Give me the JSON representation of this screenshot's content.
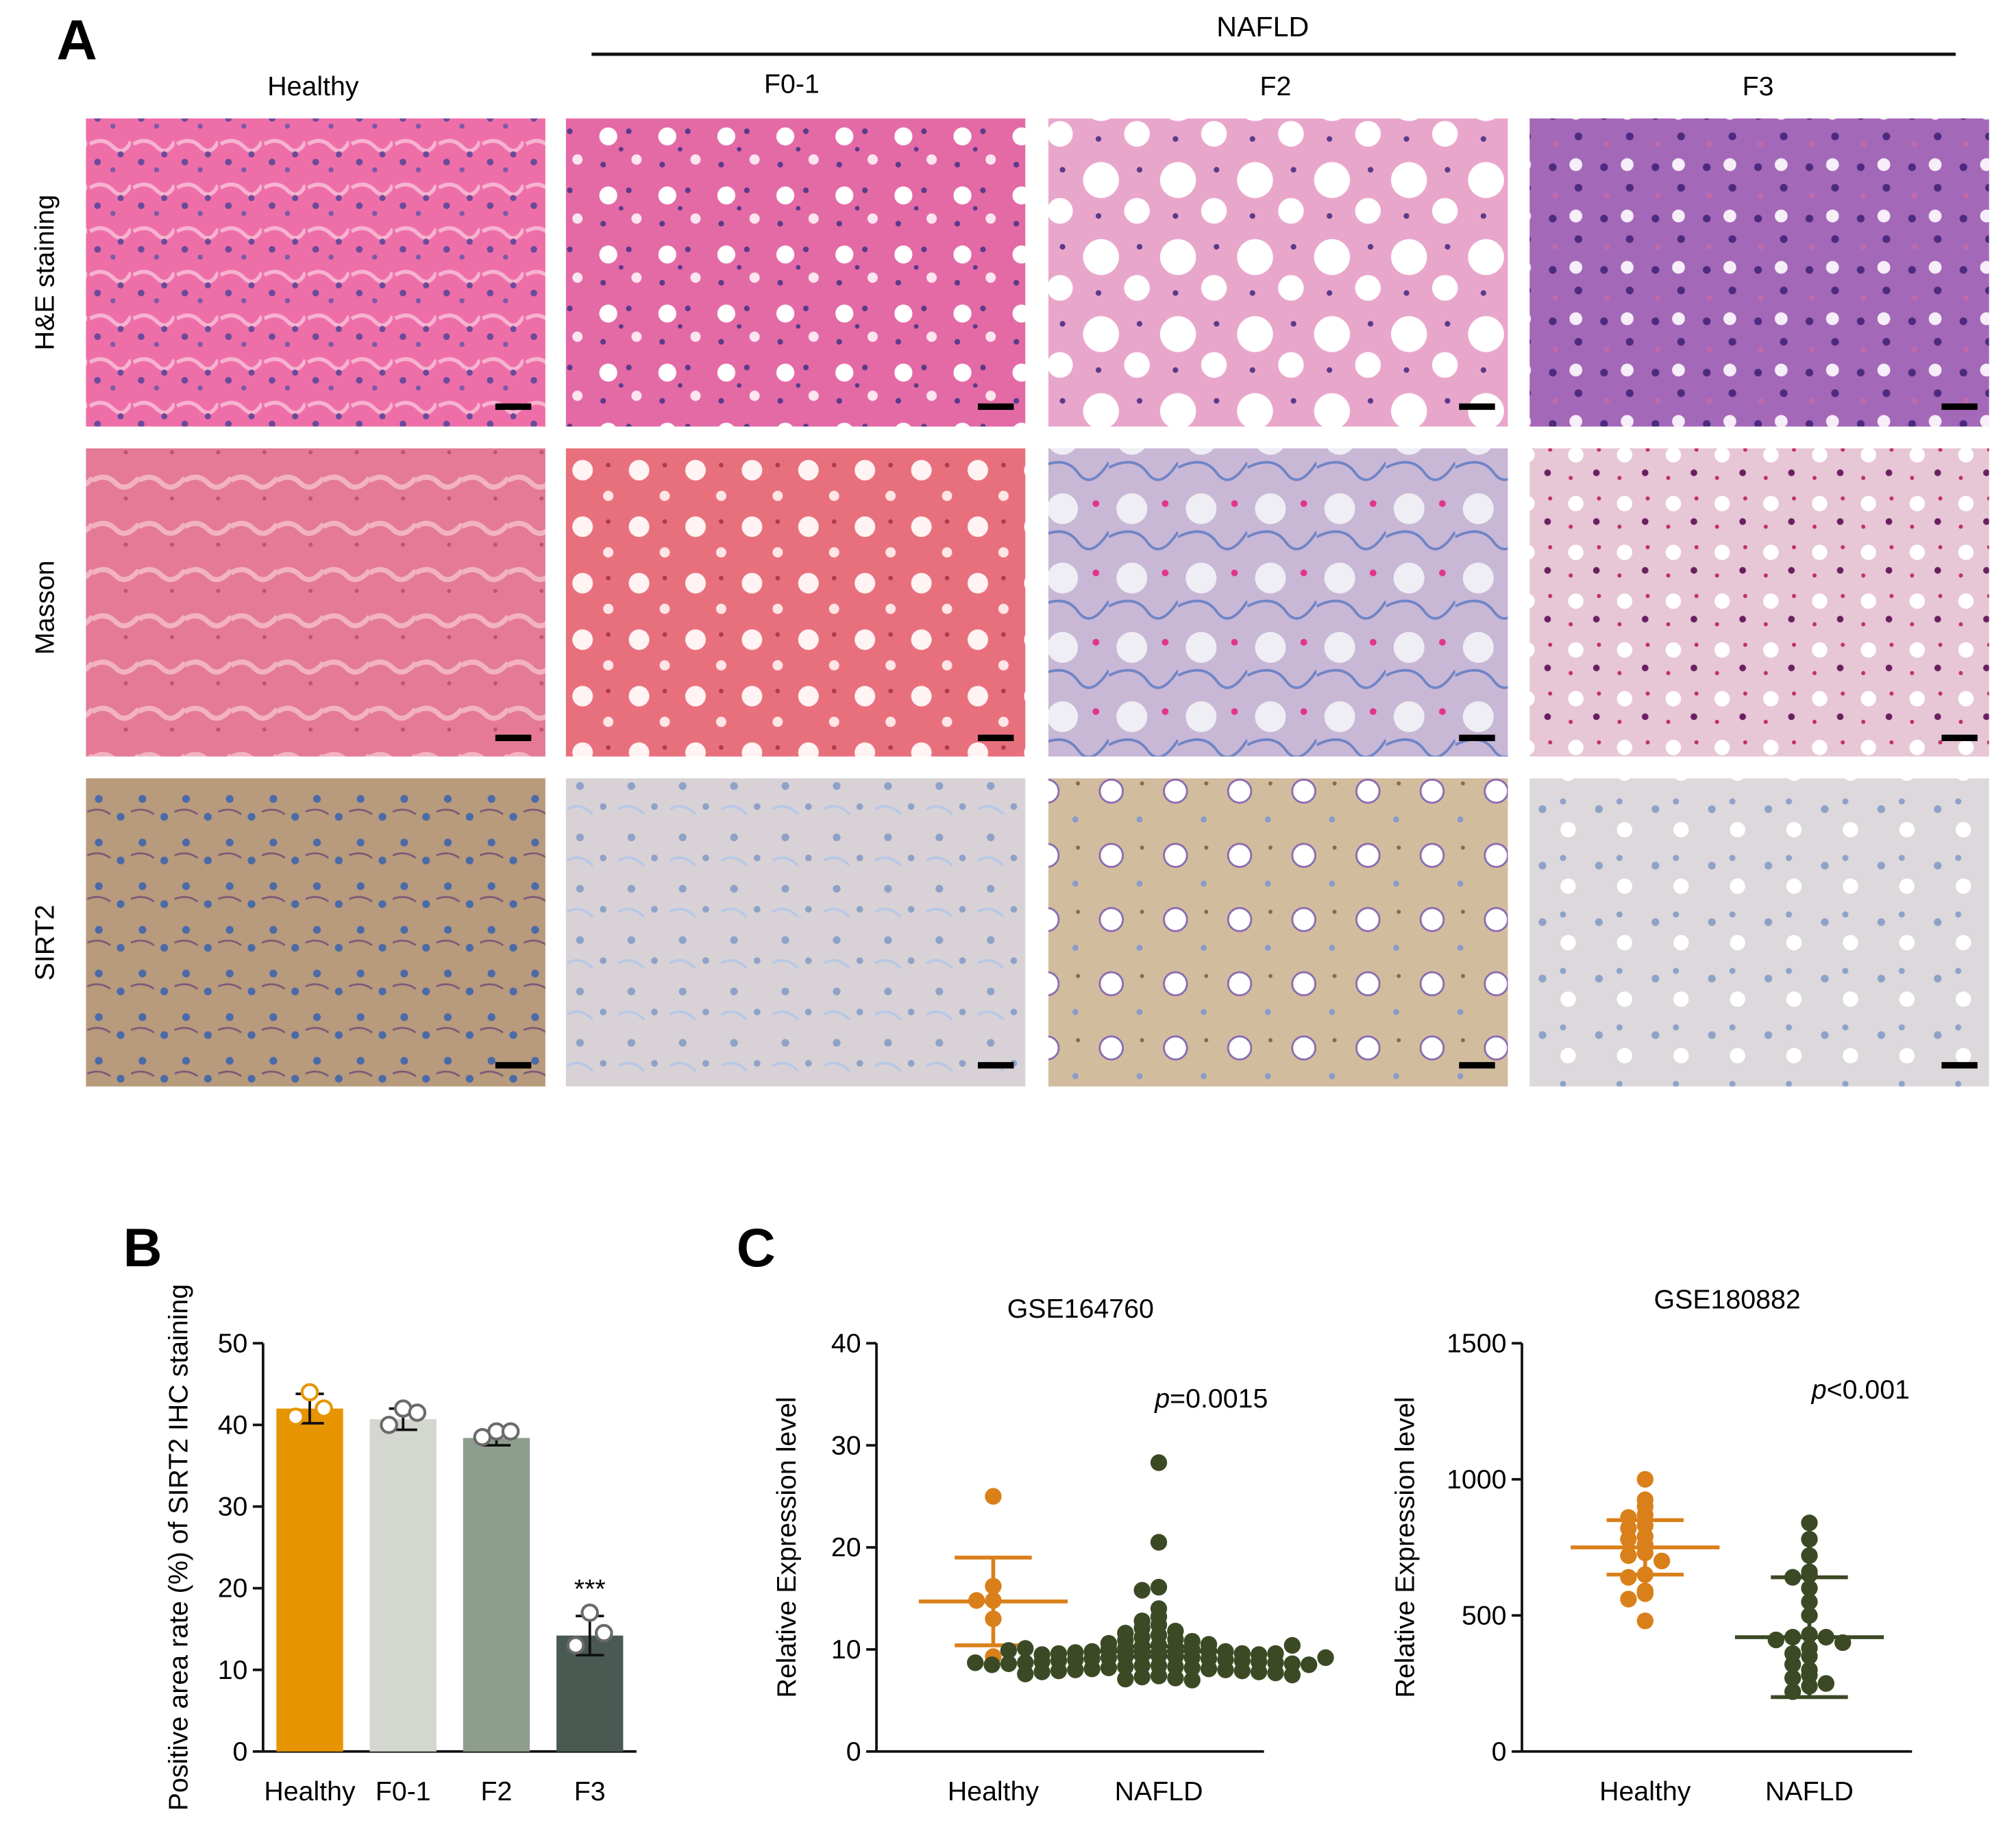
{
  "panel_a": {
    "panel_label": "A",
    "group_label": "NAFLD",
    "columns": [
      "Healthy",
      "F0-1",
      "F2",
      "F3"
    ],
    "rows": [
      "H&E staining",
      "Masson",
      "SIRT2"
    ]
  },
  "colors": {
    "healthy": "#E69500",
    "f01": "#D4D6D0",
    "f2": "#8E9E8E",
    "f3": "#4A5A52",
    "healthy_dot": "#D9801A",
    "nafld_dot": "#3B4A24",
    "he_bg": "#EE6FA8",
    "he_dark_bg": "#A468B8",
    "masson_bg": "#E47A95",
    "masson_blue_bg": "#C9B7D6",
    "ihc_brown_bg": "#C8AB8A",
    "ihc_grey_bg": "#D9D6DA"
  },
  "chart_data": [
    {
      "panel_label": "B",
      "type": "bar",
      "categories": [
        "Healthy",
        "F0-1",
        "F2",
        "F3"
      ],
      "values": [
        42,
        40.7,
        38.4,
        14.2
      ],
      "errors": [
        1.8,
        1.3,
        0.9,
        2.4
      ],
      "points": [
        [
          44,
          41,
          42
        ],
        [
          42,
          40,
          41.5
        ],
        [
          39.2,
          38.5,
          39.2
        ],
        [
          17,
          13,
          14.5
        ]
      ],
      "annotations": [
        "",
        "",
        "",
        "***"
      ],
      "ylabel": "Positive area rate (%) of SIRT2 IHC staining",
      "ylim": [
        0,
        50
      ],
      "yticks": [
        0,
        10,
        20,
        30,
        40,
        50
      ]
    },
    {
      "panel_label": "C",
      "type": "scatter",
      "title": "GSE164760",
      "categories": [
        "Healthy",
        "NAFLD"
      ],
      "ylabel": "Relative Expression level",
      "ylim": [
        0,
        40
      ],
      "yticks": [
        0,
        10,
        20,
        30,
        40
      ],
      "annotation": {
        "p_italic": "p",
        "p_rest": "=0.0015"
      },
      "series": [
        {
          "name": "Healthy",
          "values": [
            25,
            16.2,
            14.8,
            14.8,
            13,
            9.3
          ],
          "mean": 14.7,
          "sd": 4.3
        },
        {
          "name": "NAFLD",
          "values": [
            28.3,
            20.5,
            16.1,
            15.8,
            14,
            13.2,
            12.8,
            12.4,
            12.1,
            11.8,
            11.6,
            11.4,
            11.2,
            11,
            10.9,
            10.8,
            10.6,
            10.5,
            10.4,
            10.3,
            10.2,
            10.1,
            10,
            10,
            9.9,
            9.8,
            9.8,
            9.7,
            9.6,
            9.6,
            9.5,
            9.5,
            9.4,
            9.4,
            9.3,
            9.3,
            9.2,
            9.2,
            9.1,
            9.1,
            9,
            9,
            8.9,
            8.9,
            8.8,
            8.8,
            8.7,
            8.7,
            8.6,
            8.6,
            8.5,
            8.5,
            8.4,
            8.4,
            8.3,
            8.3,
            8.2,
            8.2,
            8.1,
            8.1,
            8,
            8,
            7.9,
            7.9,
            7.8,
            7.8,
            7.7,
            7.6,
            7.5,
            7.4,
            7.3,
            7.2,
            7.1,
            7.0,
            9.6,
            10.1,
            10.4,
            9.2,
            8.7,
            9.9
          ],
          "mean": 9.8,
          "sd": 0.5
        }
      ]
    },
    {
      "panel_label": "",
      "type": "scatter",
      "title": "GSE180882",
      "categories": [
        "Healthy",
        "NAFLD"
      ],
      "ylabel": "Relative Expression level",
      "ylim": [
        0,
        1500
      ],
      "yticks": [
        0,
        500,
        1000,
        1500
      ],
      "annotation": {
        "p_italic": "p",
        "p_rest": "<0.001"
      },
      "series": [
        {
          "name": "Healthy",
          "values": [
            1000,
            925,
            900,
            870,
            860,
            830,
            820,
            790,
            780,
            760,
            730,
            720,
            700,
            650,
            640,
            590,
            580,
            560,
            480
          ],
          "mean": 750,
          "sd": 100
        },
        {
          "name": "NAFLD",
          "values": [
            840,
            780,
            720,
            660,
            650,
            640,
            600,
            550,
            500,
            430,
            420,
            420,
            410,
            400,
            380,
            360,
            350,
            320,
            300,
            280,
            270,
            250,
            240,
            220
          ],
          "mean": 420,
          "sd": 220
        }
      ]
    }
  ]
}
